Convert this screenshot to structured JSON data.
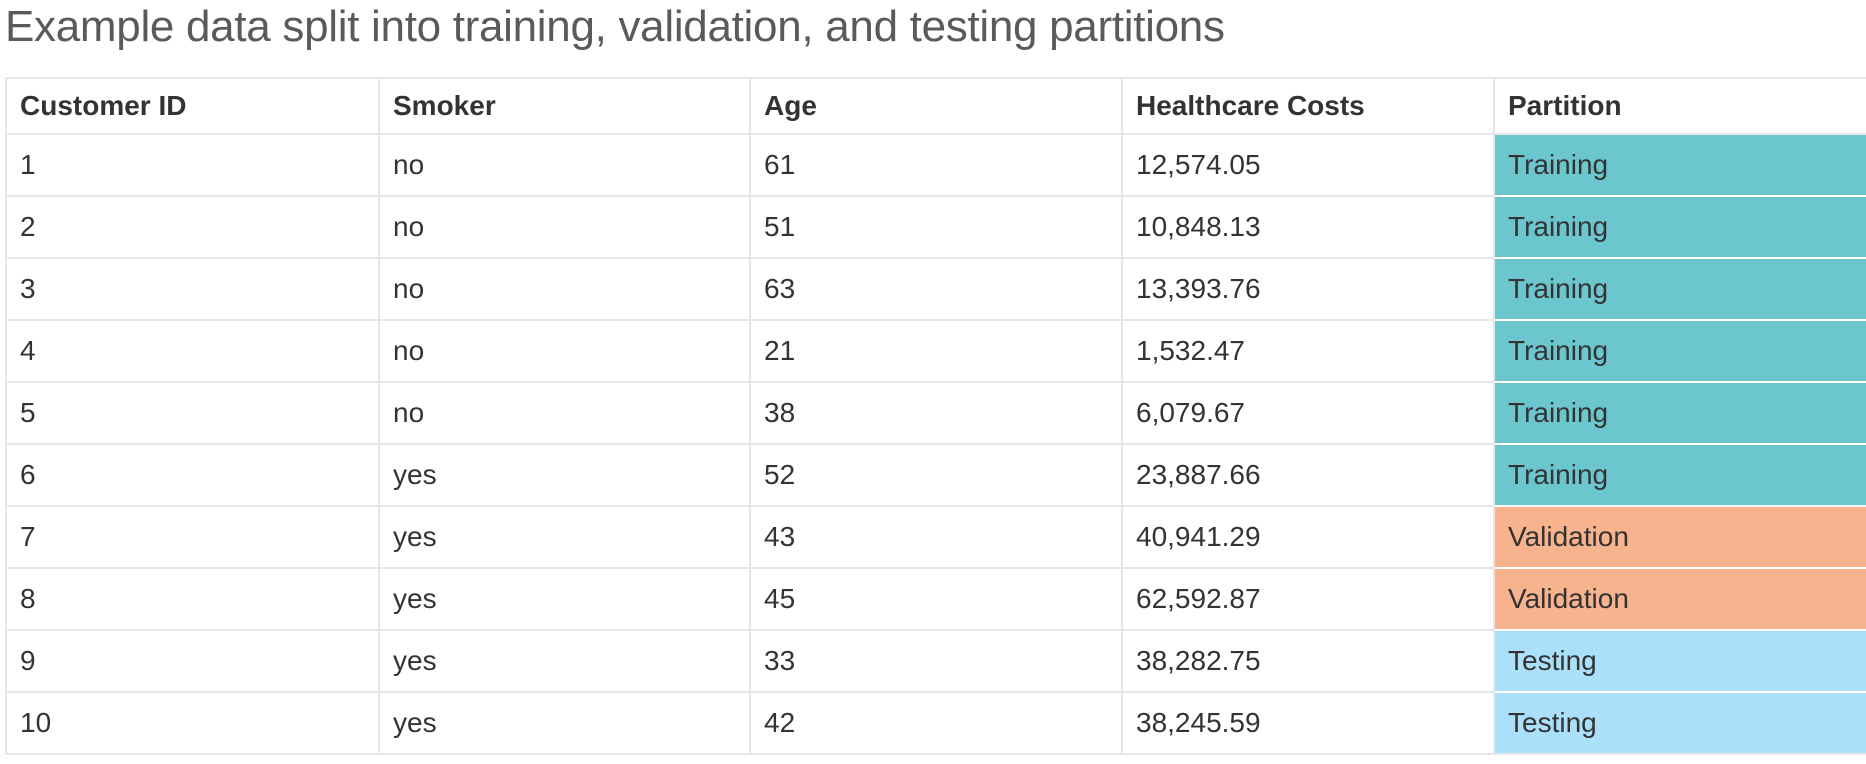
{
  "title": "Example data split into training, validation, and testing partitions",
  "table": {
    "headers": [
      "Customer ID",
      "Smoker",
      "Age",
      "Healthcare Costs",
      "Partition"
    ],
    "rows": [
      {
        "customer_id": "1",
        "smoker": "no",
        "age": "61",
        "costs": "12,574.05",
        "partition": "Training"
      },
      {
        "customer_id": "2",
        "smoker": "no",
        "age": "51",
        "costs": "10,848.13",
        "partition": "Training"
      },
      {
        "customer_id": "3",
        "smoker": "no",
        "age": "63",
        "costs": "13,393.76",
        "partition": "Training"
      },
      {
        "customer_id": "4",
        "smoker": "no",
        "age": "21",
        "costs": "1,532.47",
        "partition": "Training"
      },
      {
        "customer_id": "5",
        "smoker": "no",
        "age": "38",
        "costs": "6,079.67",
        "partition": "Training"
      },
      {
        "customer_id": "6",
        "smoker": "yes",
        "age": "52",
        "costs": "23,887.66",
        "partition": "Training"
      },
      {
        "customer_id": "7",
        "smoker": "yes",
        "age": "43",
        "costs": "40,941.29",
        "partition": "Validation"
      },
      {
        "customer_id": "8",
        "smoker": "yes",
        "age": "45",
        "costs": "62,592.87",
        "partition": "Validation"
      },
      {
        "customer_id": "9",
        "smoker": "yes",
        "age": "33",
        "costs": "38,282.75",
        "partition": "Testing"
      },
      {
        "customer_id": "10",
        "smoker": "yes",
        "age": "42",
        "costs": "38,245.59",
        "partition": "Testing"
      }
    ]
  },
  "partition_colors": {
    "Training": "#6cc6cd",
    "Validation": "#f7b28e",
    "Testing": "#abe0fb"
  }
}
